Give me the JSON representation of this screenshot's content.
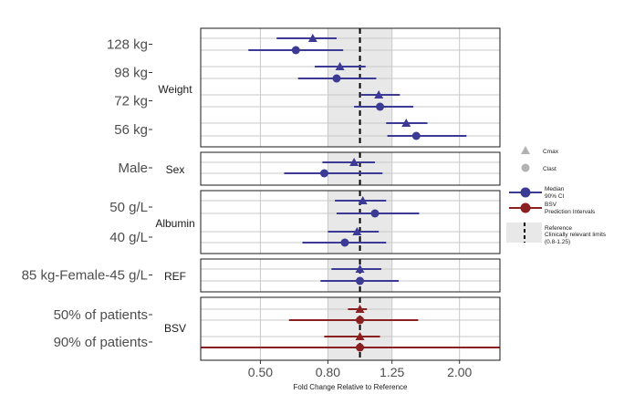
{
  "chart_data": {
    "type": "forest",
    "xlabel": "Fold Change Relative to Reference",
    "x_scale": "log",
    "xlim": [
      0.33,
      2.65
    ],
    "x_ticks": [
      0.5,
      0.8,
      1.25,
      2.0
    ],
    "x_tick_labels": [
      "0.50",
      "0.80",
      "1.25",
      "2.00"
    ],
    "reference_line": 1.0,
    "reference_band": [
      0.8,
      1.25
    ],
    "grid": true,
    "legend_position": "right",
    "legend": {
      "cmax_label": "Cmax",
      "clast_label": "Clast",
      "median_label": "Median",
      "ci_label": "90% CI",
      "bsv_label": "BSV",
      "pi_label": "Prediction Intervals",
      "ref_label": "Reference",
      "limits_label": "Clinically relevant limits",
      "limits_range": "(0.8-1.25)"
    },
    "colors": {
      "median_ci": "#3b3b96",
      "bsv": "#8b2020",
      "band": "#e8e8e8",
      "grid": "#c8c8c8"
    },
    "panels": [
      {
        "covariate": "Weight",
        "rows": [
          {
            "label": "128 kg",
            "cmax": {
              "median": 0.72,
              "low": 0.56,
              "high": 0.85
            },
            "clast": {
              "median": 0.64,
              "low": 0.46,
              "high": 0.89
            }
          },
          {
            "label": "98 kg",
            "cmax": {
              "median": 0.87,
              "low": 0.73,
              "high": 1.04
            },
            "clast": {
              "median": 0.85,
              "low": 0.65,
              "high": 1.12
            }
          },
          {
            "label": "72 kg",
            "cmax": {
              "median": 1.14,
              "low": 1.0,
              "high": 1.32
            },
            "clast": {
              "median": 1.15,
              "low": 0.96,
              "high": 1.45
            }
          },
          {
            "label": "56 kg",
            "cmax": {
              "median": 1.38,
              "low": 1.2,
              "high": 1.6
            },
            "clast": {
              "median": 1.48,
              "low": 1.21,
              "high": 2.1
            }
          }
        ]
      },
      {
        "covariate": "Sex",
        "rows": [
          {
            "label": "Male",
            "cmax": {
              "median": 0.96,
              "low": 0.77,
              "high": 1.11
            },
            "clast": {
              "median": 0.78,
              "low": 0.59,
              "high": 1.17
            }
          }
        ]
      },
      {
        "covariate": "Albumin",
        "rows": [
          {
            "label": "50 g/L",
            "cmax": {
              "median": 1.02,
              "low": 0.84,
              "high": 1.2
            },
            "clast": {
              "median": 1.11,
              "low": 0.85,
              "high": 1.51
            }
          },
          {
            "label": "40 g/L",
            "cmax": {
              "median": 0.98,
              "low": 0.8,
              "high": 1.14
            },
            "clast": {
              "median": 0.9,
              "low": 0.67,
              "high": 1.2
            }
          }
        ]
      },
      {
        "covariate": "REF",
        "rows": [
          {
            "label": "85 kg-Female-45 g/L",
            "cmax": {
              "median": 1.0,
              "low": 0.82,
              "high": 1.16
            },
            "clast": {
              "median": 1.0,
              "low": 0.76,
              "high": 1.31
            }
          }
        ]
      },
      {
        "covariate": "BSV",
        "rows": [
          {
            "label": "50% of patients",
            "cmax": {
              "median": 1.0,
              "low": 0.92,
              "high": 1.05
            },
            "clast": {
              "median": 1.0,
              "low": 0.61,
              "high": 1.5
            }
          },
          {
            "label": "90% of patients",
            "cmax": {
              "median": 1.0,
              "low": 0.78,
              "high": 1.15
            },
            "clast": {
              "median": 1.0,
              "low": 0.33,
              "high": 2.65
            }
          }
        ]
      }
    ]
  }
}
